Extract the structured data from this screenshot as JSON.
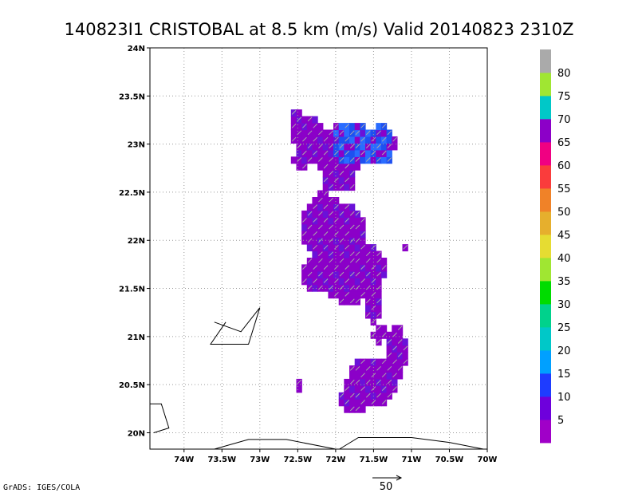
{
  "title": "140823I1 CRISTOBAL at 8.5 km (m/s) Valid 20140823 2310Z",
  "footer": "GrADS: IGES/COLA",
  "chart_data": {
    "type": "heatmap",
    "xlim": [
      -74.45,
      -70.0
    ],
    "ylim": [
      19.83,
      24.0
    ],
    "x_ticks": [
      -74,
      -73.5,
      -73,
      -72.5,
      -72,
      -71.5,
      -71,
      -70.5,
      -70
    ],
    "x_tick_labels": [
      "74W",
      "73.5W",
      "73W",
      "72.5W",
      "72W",
      "71.5W",
      "71W",
      "70.5W",
      "70W"
    ],
    "y_ticks": [
      20,
      20.5,
      21,
      21.5,
      22,
      22.5,
      23,
      23.5,
      24
    ],
    "y_tick_labels": [
      "20N",
      "20.5N",
      "21N",
      "21.5N",
      "22N",
      "22.5N",
      "23N",
      "23.5N",
      "24N"
    ],
    "grid": true,
    "colorbar": {
      "levels": [
        "5",
        "10",
        "15",
        "20",
        "25",
        "30",
        "35",
        "40",
        "45",
        "50",
        "55",
        "60",
        "65",
        "70",
        "75",
        "80"
      ],
      "colors": [
        "#a000c8",
        "#6e00dc",
        "#1e3cff",
        "#00a0ff",
        "#00c8c8",
        "#00d28c",
        "#00dc00",
        "#a0e632",
        "#e6dc32",
        "#e6af2d",
        "#f08228",
        "#fa3c3c",
        "#f00082",
        "#8c00c8",
        "#00c8c8",
        "#a0e632",
        "#aaaaaa"
      ]
    },
    "coastlines": [
      [
        [
          -74.45,
          20.3
        ],
        [
          -74.3,
          20.3
        ],
        [
          -74.2,
          20.05
        ],
        [
          -74.4,
          20.0
        ]
      ],
      [
        [
          -73.6,
          21.15
        ],
        [
          -73.25,
          21.05
        ],
        [
          -73.0,
          21.3
        ],
        [
          -73.15,
          20.92
        ],
        [
          -73.65,
          20.92
        ],
        [
          -73.45,
          21.15
        ]
      ],
      [
        [
          -73.6,
          19.83
        ],
        [
          -73.15,
          19.93
        ],
        [
          -72.65,
          19.93
        ],
        [
          -72.0,
          19.83
        ]
      ],
      [
        [
          -71.95,
          19.83
        ],
        [
          -71.7,
          19.95
        ],
        [
          -71.0,
          19.95
        ],
        [
          -70.5,
          19.9
        ],
        [
          -70.05,
          19.83
        ]
      ]
    ],
    "vector_scale": {
      "label": "50",
      "value": 50
    }
  }
}
